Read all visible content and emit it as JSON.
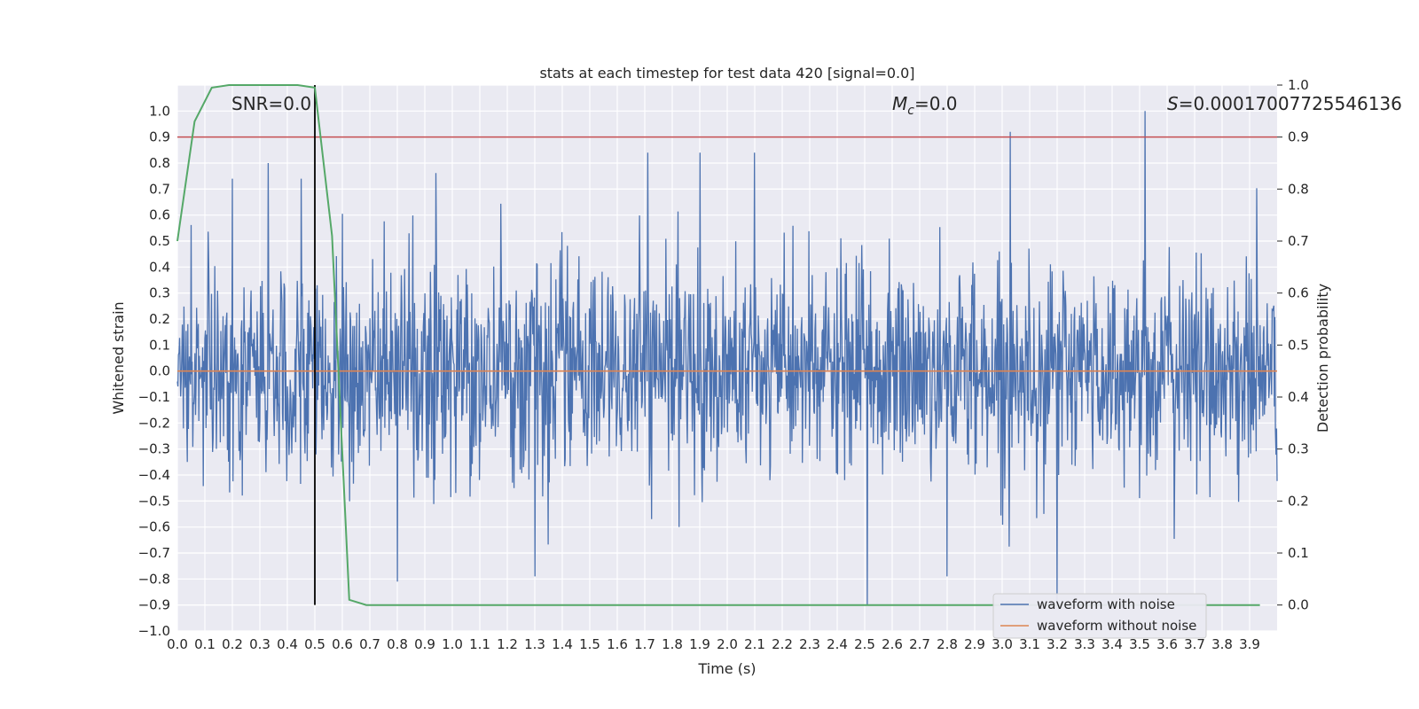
{
  "chart_data": {
    "type": "line",
    "title": "stats at each timestep for test data 420 [signal=0.0]",
    "xlabel": "Time (s)",
    "ylabel": "Whitened strain",
    "y2label": "Detection probability",
    "xlim": [
      0.0,
      4.0
    ],
    "ylim": [
      -1.0,
      1.1
    ],
    "y2lim": [
      -0.05,
      1.0
    ],
    "x_ticks": [
      0.0,
      0.1,
      0.2,
      0.3,
      0.4,
      0.5,
      0.6,
      0.7,
      0.8,
      0.9,
      1.0,
      1.1,
      1.2,
      1.3,
      1.4,
      1.5,
      1.6,
      1.7,
      1.8,
      1.9,
      2.0,
      2.1,
      2.2,
      2.3,
      2.4,
      2.5,
      2.6,
      2.7,
      2.8,
      2.9,
      3.0,
      3.1,
      3.2,
      3.3,
      3.4,
      3.5,
      3.6,
      3.7,
      3.8,
      3.9
    ],
    "y_ticks": [
      -1.0,
      -0.9,
      -0.8,
      -0.7,
      -0.6,
      -0.5,
      -0.4,
      -0.3,
      -0.2,
      -0.1,
      0.0,
      0.1,
      0.2,
      0.3,
      0.4,
      0.5,
      0.6,
      0.7,
      0.8,
      0.9,
      1.0
    ],
    "y2_ticks": [
      0.0,
      0.1,
      0.2,
      0.3,
      0.4,
      0.5,
      0.6,
      0.7,
      0.8,
      0.9,
      1.0
    ],
    "grid": true,
    "legend_position": "bottom-right",
    "annotations": {
      "snr": "SNR=0.0",
      "mc_symbol": "M",
      "mc_sub": "c",
      "mc_value": "=0.0",
      "s_symbol": "S",
      "s_value": "=0.00017007725546136"
    },
    "threshold_y2": 0.9,
    "vline_x": 0.5,
    "series": [
      {
        "name": "waveform with noise",
        "color": "#4c72b0",
        "noise_std": 0.2,
        "noise_extremes": [
          [
            0.2,
            0.74
          ],
          [
            0.33,
            0.8
          ],
          [
            0.45,
            0.74
          ],
          [
            1.71,
            0.84
          ],
          [
            1.9,
            0.84
          ],
          [
            2.1,
            0.84
          ],
          [
            3.03,
            0.92
          ],
          [
            3.52,
            1.0
          ],
          [
            2.51,
            -0.9
          ],
          [
            3.2,
            -0.9
          ],
          [
            0.8,
            -0.81
          ],
          [
            1.3,
            -0.79
          ],
          [
            2.8,
            -0.79
          ]
        ]
      },
      {
        "name": "waveform without noise",
        "color": "#dd8452",
        "value": 0.0
      },
      {
        "name": "Detection probability",
        "color": "#55a868",
        "axis": "right",
        "x": [
          0.0,
          0.0625,
          0.125,
          0.1875,
          0.25,
          0.3125,
          0.375,
          0.4375,
          0.5,
          0.5625,
          0.625,
          0.6875,
          0.75,
          0.8125,
          0.875,
          0.9375,
          1.0,
          1.5,
          2.0,
          2.5,
          3.0,
          3.5,
          3.9375
        ],
        "y": [
          0.7,
          0.93,
          0.995,
          1.0,
          1.0,
          1.0,
          1.0,
          1.0,
          0.995,
          0.71,
          0.01,
          0.0,
          0.0,
          0.0,
          0.0,
          0.0,
          0.0,
          0.0,
          0.0,
          0.0,
          0.0,
          0.0,
          0.0
        ]
      }
    ],
    "threshold_color": "#c44e52",
    "vline_color": "#000000"
  }
}
